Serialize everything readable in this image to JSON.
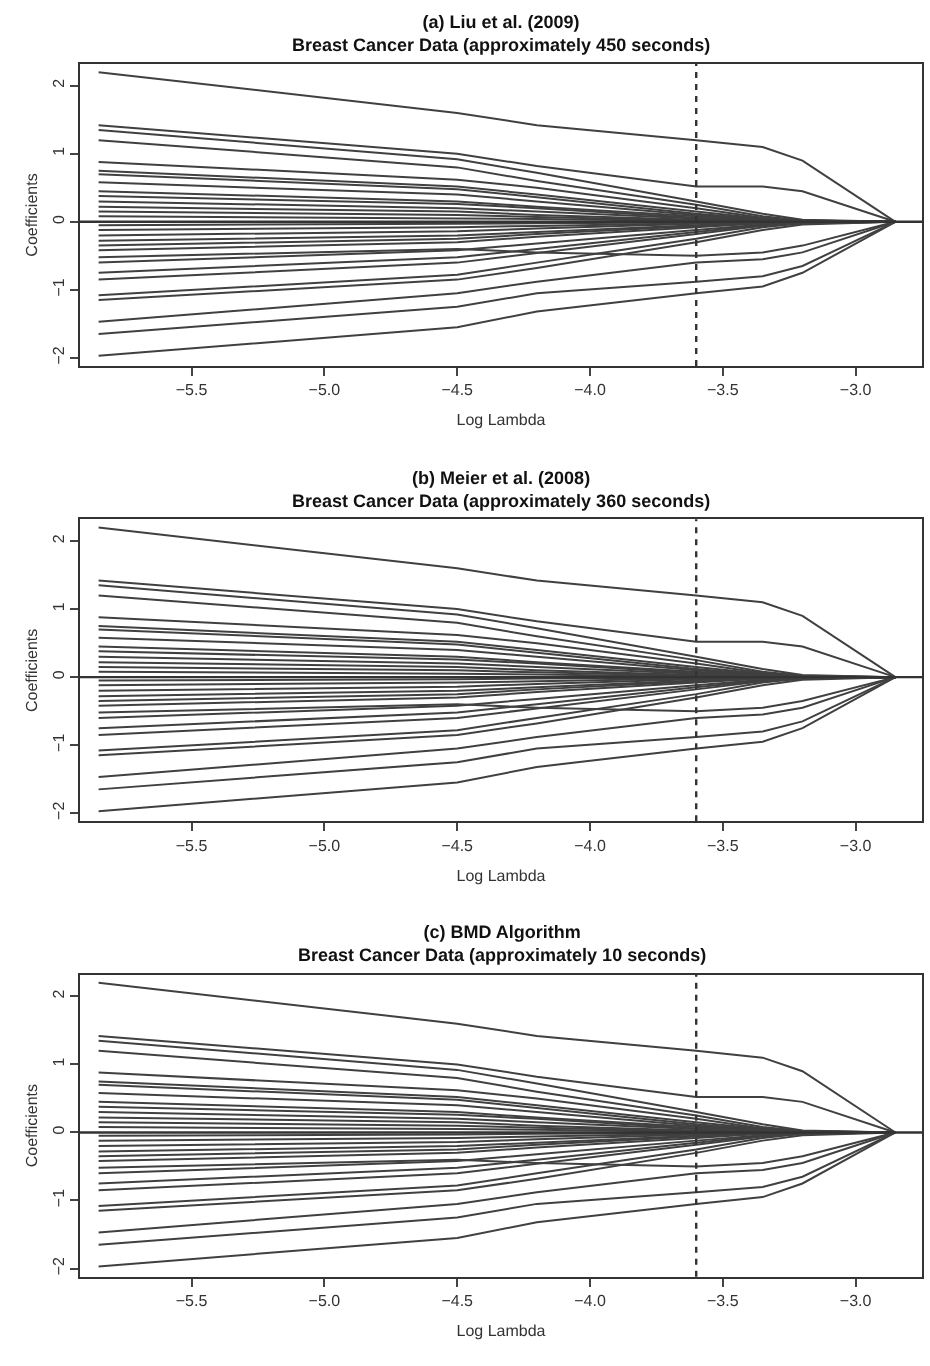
{
  "chart_data": [
    {
      "type": "line",
      "title": "(a) Liu et al. (2009)",
      "subtitle": "Breast Cancer Data (approximately 450 seconds)",
      "xlabel": "Log Lambda",
      "ylabel": "Coefficients",
      "x": [
        -5.85,
        -4.5,
        -4.2,
        -3.6,
        -3.35,
        -3.2,
        -2.85
      ],
      "xlim": [
        -5.92,
        -2.75
      ],
      "xticks": [
        -5.5,
        {
          "value": -5.0,
          "label": "−5.0"
        },
        -4.5,
        {
          "value": -4.0,
          "label": "−4.0"
        },
        -3.5,
        {
          "value": -3.0,
          "label": "−3.0"
        }
      ],
      "ylim": [
        -2.12,
        2.32
      ],
      "yticks": [
        -2,
        -1,
        0,
        1,
        2
      ],
      "marker": "none",
      "line_style": "solid",
      "ref_lines": [
        {
          "axis": "x",
          "value": -3.6,
          "line_style": "dotted",
          "color": "#333333"
        },
        {
          "axis": "y",
          "value": 0,
          "line_style": "solid",
          "color": "#333333"
        }
      ],
      "series": [
        {
          "color": "#404040",
          "values": [
            2.2,
            1.6,
            1.42,
            1.2,
            1.1,
            0.9,
            0
          ]
        },
        {
          "color": "#404040",
          "values": [
            1.42,
            1.0,
            0.82,
            0.52,
            0.52,
            0.45,
            0
          ]
        },
        {
          "color": "#404040",
          "values": [
            1.35,
            0.92,
            0.72,
            0.3,
            0.12,
            0.03,
            0
          ]
        },
        {
          "color": "#404040",
          "values": [
            1.2,
            0.8,
            0.6,
            0.25,
            0.08,
            0.02,
            0
          ]
        },
        {
          "color": "#404040",
          "values": [
            0.88,
            0.62,
            0.5,
            0.2,
            0.06,
            0.02,
            0
          ]
        },
        {
          "color": "#404040",
          "values": [
            0.75,
            0.52,
            0.4,
            0.15,
            0.05,
            0.01,
            0
          ]
        },
        {
          "color": "#404040",
          "values": [
            0.7,
            0.48,
            0.36,
            0.12,
            0.04,
            0,
            0
          ]
        },
        {
          "color": "#404040",
          "values": [
            0.58,
            0.4,
            0.3,
            0.1,
            0.03,
            0,
            0
          ]
        },
        {
          "color": "#404040",
          "values": [
            0.45,
            0.3,
            0.22,
            0.08,
            0.02,
            0,
            0
          ]
        },
        {
          "color": "#404040",
          "values": [
            0.38,
            0.26,
            0.2,
            0.06,
            0.02,
            0,
            0
          ]
        },
        {
          "color": "#404040",
          "values": [
            0.3,
            0.2,
            0.15,
            0.05,
            0.01,
            0,
            0
          ]
        },
        {
          "color": "#404040",
          "values": [
            0.22,
            0.15,
            0.1,
            0.03,
            0,
            0,
            0
          ]
        },
        {
          "color": "#404040",
          "values": [
            0.15,
            0.1,
            0.07,
            0.02,
            0,
            0,
            0
          ]
        },
        {
          "color": "#404040",
          "values": [
            0.08,
            0.05,
            0.04,
            0.01,
            0,
            0,
            0
          ]
        },
        {
          "color": "#404040",
          "values": [
            -0.05,
            -0.03,
            -0.02,
            -0.01,
            0,
            0,
            0
          ]
        },
        {
          "color": "#404040",
          "values": [
            -0.12,
            -0.08,
            -0.06,
            -0.02,
            0,
            0,
            0
          ]
        },
        {
          "color": "#404040",
          "values": [
            -0.2,
            -0.14,
            -0.1,
            -0.03,
            0,
            0,
            0
          ]
        },
        {
          "color": "#404040",
          "values": [
            -0.28,
            -0.2,
            -0.15,
            -0.05,
            -0.01,
            0,
            0
          ]
        },
        {
          "color": "#404040",
          "values": [
            -0.35,
            -0.25,
            -0.18,
            -0.06,
            -0.02,
            0,
            0
          ]
        },
        {
          "color": "#404040",
          "values": [
            -0.42,
            -0.3,
            -0.22,
            -0.08,
            -0.02,
            0,
            0
          ]
        },
        {
          "color": "#404040",
          "values": [
            -0.52,
            -0.4,
            -0.45,
            -0.5,
            -0.45,
            -0.35,
            0
          ]
        },
        {
          "color": "#404040",
          "values": [
            -0.6,
            -0.42,
            -0.32,
            -0.12,
            -0.04,
            -0.01,
            0
          ]
        },
        {
          "color": "#404040",
          "values": [
            -0.75,
            -0.52,
            -0.4,
            -0.15,
            -0.05,
            -0.02,
            0
          ]
        },
        {
          "color": "#404040",
          "values": [
            -0.85,
            -0.6,
            -0.46,
            -0.18,
            -0.06,
            -0.02,
            0
          ]
        },
        {
          "color": "#404040",
          "values": [
            -1.08,
            -0.78,
            -0.6,
            -0.25,
            -0.08,
            -0.02,
            0
          ]
        },
        {
          "color": "#404040",
          "values": [
            -1.15,
            -0.85,
            -0.68,
            -0.3,
            -0.12,
            -0.04,
            0
          ]
        },
        {
          "color": "#404040",
          "values": [
            -1.47,
            -1.05,
            -0.88,
            -0.6,
            -0.55,
            -0.45,
            0
          ]
        },
        {
          "color": "#404040",
          "values": [
            -1.65,
            -1.25,
            -1.05,
            -0.88,
            -0.8,
            -0.65,
            0
          ]
        },
        {
          "color": "#404040",
          "values": [
            -1.97,
            -1.55,
            -1.32,
            -1.05,
            -0.95,
            -0.75,
            0
          ]
        }
      ]
    },
    {
      "type": "line",
      "title": "(b) Meier et al. (2008)",
      "subtitle": "Breast Cancer Data (approximately 360 seconds)",
      "xlabel": "Log Lambda",
      "ylabel": "Coefficients",
      "x": [
        -5.85,
        -4.5,
        -4.2,
        -3.6,
        -3.35,
        -3.2,
        -2.85
      ],
      "xlim": [
        -5.92,
        -2.75
      ],
      "xticks": [
        -5.5,
        {
          "value": -5.0,
          "label": "−5.0"
        },
        -4.5,
        {
          "value": -4.0,
          "label": "−4.0"
        },
        -3.5,
        {
          "value": -3.0,
          "label": "−3.0"
        }
      ],
      "ylim": [
        -2.12,
        2.32
      ],
      "yticks": [
        -2,
        -1,
        0,
        1,
        2
      ],
      "marker": "none",
      "line_style": "solid",
      "ref_lines": [
        {
          "axis": "x",
          "value": -3.6,
          "line_style": "dotted",
          "color": "#333333"
        },
        {
          "axis": "y",
          "value": 0,
          "line_style": "solid",
          "color": "#333333"
        }
      ],
      "series": [
        {
          "color": "#404040",
          "values": [
            2.2,
            1.6,
            1.42,
            1.2,
            1.1,
            0.9,
            0
          ]
        },
        {
          "color": "#404040",
          "values": [
            1.42,
            1.0,
            0.82,
            0.52,
            0.52,
            0.45,
            0
          ]
        },
        {
          "color": "#404040",
          "values": [
            1.35,
            0.92,
            0.72,
            0.3,
            0.12,
            0.03,
            0
          ]
        },
        {
          "color": "#404040",
          "values": [
            1.2,
            0.8,
            0.6,
            0.25,
            0.08,
            0.02,
            0
          ]
        },
        {
          "color": "#404040",
          "values": [
            0.88,
            0.62,
            0.5,
            0.2,
            0.06,
            0.02,
            0
          ]
        },
        {
          "color": "#404040",
          "values": [
            0.75,
            0.52,
            0.4,
            0.15,
            0.05,
            0.01,
            0
          ]
        },
        {
          "color": "#404040",
          "values": [
            0.7,
            0.48,
            0.36,
            0.12,
            0.04,
            0,
            0
          ]
        },
        {
          "color": "#404040",
          "values": [
            0.58,
            0.4,
            0.3,
            0.1,
            0.03,
            0,
            0
          ]
        },
        {
          "color": "#404040",
          "values": [
            0.45,
            0.3,
            0.22,
            0.08,
            0.02,
            0,
            0
          ]
        },
        {
          "color": "#404040",
          "values": [
            0.38,
            0.26,
            0.2,
            0.06,
            0.02,
            0,
            0
          ]
        },
        {
          "color": "#404040",
          "values": [
            0.3,
            0.2,
            0.15,
            0.05,
            0.01,
            0,
            0
          ]
        },
        {
          "color": "#404040",
          "values": [
            0.22,
            0.15,
            0.1,
            0.03,
            0,
            0,
            0
          ]
        },
        {
          "color": "#404040",
          "values": [
            0.15,
            0.1,
            0.07,
            0.02,
            0,
            0,
            0
          ]
        },
        {
          "color": "#404040",
          "values": [
            0.08,
            0.05,
            0.04,
            0.01,
            0,
            0,
            0
          ]
        },
        {
          "color": "#404040",
          "values": [
            -0.05,
            -0.03,
            -0.02,
            -0.01,
            0,
            0,
            0
          ]
        },
        {
          "color": "#404040",
          "values": [
            -0.12,
            -0.08,
            -0.06,
            -0.02,
            0,
            0,
            0
          ]
        },
        {
          "color": "#404040",
          "values": [
            -0.2,
            -0.14,
            -0.1,
            -0.03,
            0,
            0,
            0
          ]
        },
        {
          "color": "#404040",
          "values": [
            -0.28,
            -0.2,
            -0.15,
            -0.05,
            -0.01,
            0,
            0
          ]
        },
        {
          "color": "#404040",
          "values": [
            -0.35,
            -0.25,
            -0.18,
            -0.06,
            -0.02,
            0,
            0
          ]
        },
        {
          "color": "#404040",
          "values": [
            -0.42,
            -0.3,
            -0.22,
            -0.08,
            -0.02,
            0,
            0
          ]
        },
        {
          "color": "#404040",
          "values": [
            -0.52,
            -0.4,
            -0.45,
            -0.5,
            -0.45,
            -0.35,
            0
          ]
        },
        {
          "color": "#404040",
          "values": [
            -0.6,
            -0.42,
            -0.32,
            -0.12,
            -0.04,
            -0.01,
            0
          ]
        },
        {
          "color": "#404040",
          "values": [
            -0.75,
            -0.52,
            -0.4,
            -0.15,
            -0.05,
            -0.02,
            0
          ]
        },
        {
          "color": "#404040",
          "values": [
            -0.85,
            -0.6,
            -0.46,
            -0.18,
            -0.06,
            -0.02,
            0
          ]
        },
        {
          "color": "#404040",
          "values": [
            -1.08,
            -0.78,
            -0.6,
            -0.25,
            -0.08,
            -0.02,
            0
          ]
        },
        {
          "color": "#404040",
          "values": [
            -1.15,
            -0.85,
            -0.68,
            -0.3,
            -0.12,
            -0.04,
            0
          ]
        },
        {
          "color": "#404040",
          "values": [
            -1.47,
            -1.05,
            -0.88,
            -0.6,
            -0.55,
            -0.45,
            0
          ]
        },
        {
          "color": "#404040",
          "values": [
            -1.65,
            -1.25,
            -1.05,
            -0.88,
            -0.8,
            -0.65,
            0
          ]
        },
        {
          "color": "#404040",
          "values": [
            -1.97,
            -1.55,
            -1.32,
            -1.05,
            -0.95,
            -0.75,
            0
          ]
        }
      ]
    },
    {
      "type": "line",
      "title": "(c) BMD Algorithm",
      "subtitle": "Breast Cancer Data (approximately 10 seconds)",
      "xlabel": "Log Lambda",
      "ylabel": "Coefficients",
      "x": [
        -5.85,
        -4.5,
        -4.2,
        -3.6,
        -3.35,
        -3.2,
        -2.85
      ],
      "xlim": [
        -5.92,
        -2.75
      ],
      "xticks": [
        -5.5,
        {
          "value": -5.0,
          "label": "−5.0"
        },
        -4.5,
        {
          "value": -4.0,
          "label": "−4.0"
        },
        -3.5,
        {
          "value": -3.0,
          "label": "−3.0"
        }
      ],
      "ylim": [
        -2.12,
        2.32
      ],
      "yticks": [
        -2,
        -1,
        0,
        1,
        2
      ],
      "marker": "none",
      "line_style": "solid",
      "ref_lines": [
        {
          "axis": "x",
          "value": -3.6,
          "line_style": "dotted",
          "color": "#333333"
        },
        {
          "axis": "y",
          "value": 0,
          "line_style": "solid",
          "color": "#333333"
        }
      ],
      "series": [
        {
          "color": "#404040",
          "values": [
            2.2,
            1.6,
            1.42,
            1.2,
            1.1,
            0.9,
            0
          ]
        },
        {
          "color": "#404040",
          "values": [
            1.42,
            1.0,
            0.82,
            0.52,
            0.52,
            0.45,
            0
          ]
        },
        {
          "color": "#404040",
          "values": [
            1.35,
            0.92,
            0.72,
            0.3,
            0.12,
            0.03,
            0
          ]
        },
        {
          "color": "#404040",
          "values": [
            1.2,
            0.8,
            0.6,
            0.25,
            0.08,
            0.02,
            0
          ]
        },
        {
          "color": "#404040",
          "values": [
            0.88,
            0.62,
            0.5,
            0.2,
            0.06,
            0.02,
            0
          ]
        },
        {
          "color": "#404040",
          "values": [
            0.75,
            0.52,
            0.4,
            0.15,
            0.05,
            0.01,
            0
          ]
        },
        {
          "color": "#404040",
          "values": [
            0.7,
            0.48,
            0.36,
            0.12,
            0.04,
            0,
            0
          ]
        },
        {
          "color": "#404040",
          "values": [
            0.58,
            0.4,
            0.3,
            0.1,
            0.03,
            0,
            0
          ]
        },
        {
          "color": "#404040",
          "values": [
            0.45,
            0.3,
            0.22,
            0.08,
            0.02,
            0,
            0
          ]
        },
        {
          "color": "#404040",
          "values": [
            0.38,
            0.26,
            0.2,
            0.06,
            0.02,
            0,
            0
          ]
        },
        {
          "color": "#404040",
          "values": [
            0.3,
            0.2,
            0.15,
            0.05,
            0.01,
            0,
            0
          ]
        },
        {
          "color": "#404040",
          "values": [
            0.22,
            0.15,
            0.1,
            0.03,
            0,
            0,
            0
          ]
        },
        {
          "color": "#404040",
          "values": [
            0.15,
            0.1,
            0.07,
            0.02,
            0,
            0,
            0
          ]
        },
        {
          "color": "#404040",
          "values": [
            0.08,
            0.05,
            0.04,
            0.01,
            0,
            0,
            0
          ]
        },
        {
          "color": "#404040",
          "values": [
            -0.05,
            -0.03,
            -0.02,
            -0.01,
            0,
            0,
            0
          ]
        },
        {
          "color": "#404040",
          "values": [
            -0.12,
            -0.08,
            -0.06,
            -0.02,
            0,
            0,
            0
          ]
        },
        {
          "color": "#404040",
          "values": [
            -0.2,
            -0.14,
            -0.1,
            -0.03,
            0,
            0,
            0
          ]
        },
        {
          "color": "#404040",
          "values": [
            -0.28,
            -0.2,
            -0.15,
            -0.05,
            -0.01,
            0,
            0
          ]
        },
        {
          "color": "#404040",
          "values": [
            -0.35,
            -0.25,
            -0.18,
            -0.06,
            -0.02,
            0,
            0
          ]
        },
        {
          "color": "#404040",
          "values": [
            -0.42,
            -0.3,
            -0.22,
            -0.08,
            -0.02,
            0,
            0
          ]
        },
        {
          "color": "#404040",
          "values": [
            -0.52,
            -0.4,
            -0.45,
            -0.5,
            -0.45,
            -0.35,
            0
          ]
        },
        {
          "color": "#404040",
          "values": [
            -0.6,
            -0.42,
            -0.32,
            -0.12,
            -0.04,
            -0.01,
            0
          ]
        },
        {
          "color": "#404040",
          "values": [
            -0.75,
            -0.52,
            -0.4,
            -0.15,
            -0.05,
            -0.02,
            0
          ]
        },
        {
          "color": "#404040",
          "values": [
            -0.85,
            -0.6,
            -0.46,
            -0.18,
            -0.06,
            -0.02,
            0
          ]
        },
        {
          "color": "#404040",
          "values": [
            -1.08,
            -0.78,
            -0.6,
            -0.25,
            -0.08,
            -0.02,
            0
          ]
        },
        {
          "color": "#404040",
          "values": [
            -1.15,
            -0.85,
            -0.68,
            -0.3,
            -0.12,
            -0.04,
            0
          ]
        },
        {
          "color": "#404040",
          "values": [
            -1.47,
            -1.05,
            -0.88,
            -0.6,
            -0.55,
            -0.45,
            0
          ]
        },
        {
          "color": "#404040",
          "values": [
            -1.65,
            -1.25,
            -1.05,
            -0.88,
            -0.8,
            -0.65,
            0
          ]
        },
        {
          "color": "#404040",
          "values": [
            -1.97,
            -1.55,
            -1.32,
            -1.05,
            -0.95,
            -0.75,
            0
          ]
        }
      ]
    }
  ]
}
